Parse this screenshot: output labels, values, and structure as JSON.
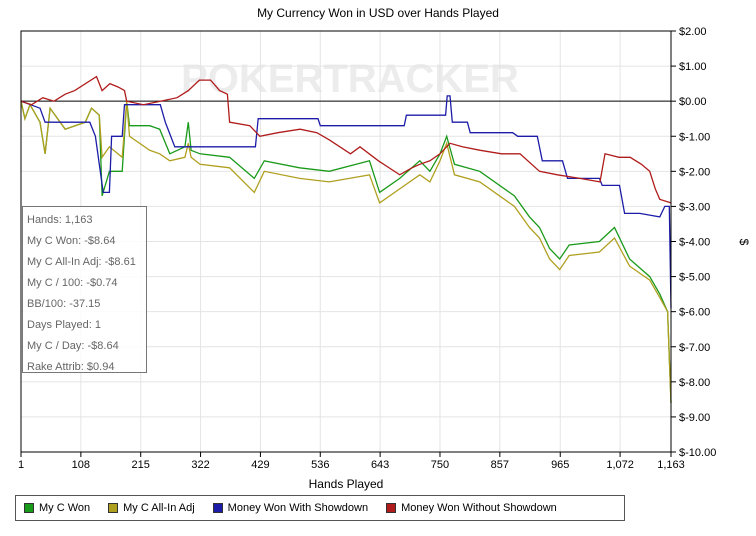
{
  "chart_data": {
    "type": "line",
    "title": "My Currency Won in USD over Hands Played",
    "xlabel": "Hands Played",
    "ylabel": "$",
    "watermark": "POKERTRACKER",
    "xlim": [
      1,
      1163
    ],
    "ylim": [
      -10,
      2
    ],
    "x_ticks": [
      "1",
      "108",
      "215",
      "322",
      "429",
      "536",
      "643",
      "750",
      "857",
      "965",
      "1,072",
      "1,163"
    ],
    "x_tick_values": [
      1,
      108,
      215,
      322,
      429,
      536,
      643,
      750,
      857,
      965,
      1072,
      1163
    ],
    "y_ticks": [
      "$2.00",
      "$1.00",
      "$0.00",
      "$-1.00",
      "$-2.00",
      "$-3.00",
      "$-4.00",
      "$-5.00",
      "$-6.00",
      "$-7.00",
      "$-8.00",
      "$-9.00",
      "$-10.00"
    ],
    "y_tick_values": [
      2,
      1,
      0,
      -1,
      -2,
      -3,
      -4,
      -5,
      -6,
      -7,
      -8,
      -9,
      -10
    ],
    "grid": true,
    "legend_position": "bottom",
    "series": [
      {
        "name": "My C Won",
        "color": "#1a9a1a",
        "points": [
          [
            1,
            0
          ],
          [
            8,
            -0.5
          ],
          [
            17,
            -0.1
          ],
          [
            35,
            -0.6
          ],
          [
            44,
            -1.5
          ],
          [
            53,
            -0.2
          ],
          [
            80,
            -0.8
          ],
          [
            116,
            -0.6
          ],
          [
            127,
            -0.2
          ],
          [
            141,
            -0.4
          ],
          [
            146,
            -2.7
          ],
          [
            159,
            -2.0
          ],
          [
            182,
            -2.0
          ],
          [
            190,
            0.0
          ],
          [
            195,
            -0.7
          ],
          [
            231,
            -0.7
          ],
          [
            249,
            -0.8
          ],
          [
            267,
            -1.5
          ],
          [
            294,
            -1.3
          ],
          [
            300,
            -0.6
          ],
          [
            305,
            -1.4
          ],
          [
            321,
            -1.5
          ],
          [
            374,
            -1.6
          ],
          [
            418,
            -2.2
          ],
          [
            436,
            -1.7
          ],
          [
            499,
            -1.9
          ],
          [
            552,
            -2.0
          ],
          [
            624,
            -1.7
          ],
          [
            642,
            -2.6
          ],
          [
            678,
            -2.2
          ],
          [
            714,
            -1.7
          ],
          [
            732,
            -2.0
          ],
          [
            750,
            -1.5
          ],
          [
            762,
            -1.0
          ],
          [
            776,
            -1.8
          ],
          [
            821,
            -2.0
          ],
          [
            883,
            -2.7
          ],
          [
            910,
            -3.3
          ],
          [
            928,
            -3.6
          ],
          [
            946,
            -4.2
          ],
          [
            964,
            -4.5
          ],
          [
            981,
            -4.1
          ],
          [
            1035,
            -4.0
          ],
          [
            1062,
            -3.6
          ],
          [
            1089,
            -4.5
          ],
          [
            1125,
            -5.0
          ],
          [
            1143,
            -5.5
          ],
          [
            1157,
            -6.0
          ],
          [
            1163,
            -8.6
          ]
        ]
      },
      {
        "name": "My C All-In Adj",
        "color": "#b0a020",
        "points": [
          [
            1,
            0
          ],
          [
            8,
            -0.5
          ],
          [
            17,
            -0.1
          ],
          [
            35,
            -0.6
          ],
          [
            44,
            -1.5
          ],
          [
            53,
            -0.2
          ],
          [
            80,
            -0.8
          ],
          [
            116,
            -0.6
          ],
          [
            127,
            -0.2
          ],
          [
            141,
            -0.4
          ],
          [
            146,
            -1.6
          ],
          [
            159,
            -1.3
          ],
          [
            182,
            -1.6
          ],
          [
            190,
            0.0
          ],
          [
            195,
            -1.0
          ],
          [
            231,
            -1.4
          ],
          [
            249,
            -1.5
          ],
          [
            267,
            -1.7
          ],
          [
            294,
            -1.6
          ],
          [
            300,
            -1.2
          ],
          [
            305,
            -1.6
          ],
          [
            321,
            -1.8
          ],
          [
            374,
            -1.9
          ],
          [
            418,
            -2.6
          ],
          [
            436,
            -2.0
          ],
          [
            499,
            -2.2
          ],
          [
            552,
            -2.3
          ],
          [
            624,
            -2.1
          ],
          [
            642,
            -2.9
          ],
          [
            678,
            -2.5
          ],
          [
            714,
            -2.1
          ],
          [
            732,
            -2.3
          ],
          [
            750,
            -1.7
          ],
          [
            762,
            -1.2
          ],
          [
            776,
            -2.1
          ],
          [
            821,
            -2.3
          ],
          [
            883,
            -3.0
          ],
          [
            910,
            -3.6
          ],
          [
            928,
            -3.9
          ],
          [
            946,
            -4.5
          ],
          [
            964,
            -4.8
          ],
          [
            981,
            -4.4
          ],
          [
            1035,
            -4.3
          ],
          [
            1062,
            -3.9
          ],
          [
            1089,
            -4.7
          ],
          [
            1125,
            -5.1
          ],
          [
            1143,
            -5.6
          ],
          [
            1157,
            -6.0
          ],
          [
            1163,
            -8.6
          ]
        ]
      },
      {
        "name": "Money Won With Showdown",
        "color": "#1c1ca8",
        "points": [
          [
            1,
            0
          ],
          [
            35,
            -0.2
          ],
          [
            44,
            -0.6
          ],
          [
            124,
            -0.6
          ],
          [
            134,
            -1.0
          ],
          [
            148,
            -2.6
          ],
          [
            159,
            -2.6
          ],
          [
            163,
            -1.0
          ],
          [
            182,
            -1.0
          ],
          [
            186,
            -0.1
          ],
          [
            250,
            -0.1
          ],
          [
            259,
            -0.6
          ],
          [
            276,
            -1.3
          ],
          [
            420,
            -1.3
          ],
          [
            425,
            -0.5
          ],
          [
            532,
            -0.5
          ],
          [
            536,
            -0.7
          ],
          [
            686,
            -0.7
          ],
          [
            690,
            -0.4
          ],
          [
            760,
            -0.4
          ],
          [
            763,
            0.15
          ],
          [
            768,
            0.15
          ],
          [
            772,
            -0.6
          ],
          [
            799,
            -0.6
          ],
          [
            804,
            -0.9
          ],
          [
            880,
            -0.9
          ],
          [
            889,
            -1.0
          ],
          [
            924,
            -1.0
          ],
          [
            933,
            -1.7
          ],
          [
            969,
            -1.7
          ],
          [
            978,
            -2.2
          ],
          [
            1035,
            -2.2
          ],
          [
            1040,
            -2.4
          ],
          [
            1071,
            -2.4
          ],
          [
            1080,
            -3.2
          ],
          [
            1107,
            -3.2
          ],
          [
            1143,
            -3.3
          ],
          [
            1152,
            -3.0
          ],
          [
            1160,
            -3.0
          ],
          [
            1163,
            -5.9
          ]
        ]
      },
      {
        "name": "Money Won Without Showdown",
        "color": "#b01c1c",
        "points": [
          [
            1,
            0
          ],
          [
            20,
            -0.1
          ],
          [
            40,
            0.1
          ],
          [
            60,
            0.0
          ],
          [
            80,
            0.2
          ],
          [
            97,
            0.3
          ],
          [
            136,
            0.7
          ],
          [
            146,
            0.3
          ],
          [
            160,
            0.5
          ],
          [
            175,
            0.4
          ],
          [
            186,
            0.3
          ],
          [
            190,
            0.0
          ],
          [
            220,
            -0.1
          ],
          [
            250,
            0.0
          ],
          [
            280,
            0.1
          ],
          [
            300,
            0.3
          ],
          [
            320,
            0.6
          ],
          [
            340,
            0.6
          ],
          [
            356,
            0.3
          ],
          [
            370,
            0.2
          ],
          [
            374,
            -0.6
          ],
          [
            410,
            -0.7
          ],
          [
            428,
            -1.0
          ],
          [
            460,
            -0.9
          ],
          [
            500,
            -0.8
          ],
          [
            530,
            -0.9
          ],
          [
            552,
            -1.1
          ],
          [
            590,
            -1.5
          ],
          [
            607,
            -1.3
          ],
          [
            640,
            -1.7
          ],
          [
            678,
            -2.1
          ],
          [
            700,
            -1.9
          ],
          [
            714,
            -1.8
          ],
          [
            732,
            -1.7
          ],
          [
            750,
            -1.5
          ],
          [
            768,
            -1.2
          ],
          [
            790,
            -1.3
          ],
          [
            822,
            -1.4
          ],
          [
            860,
            -1.5
          ],
          [
            893,
            -1.5
          ],
          [
            928,
            -2.0
          ],
          [
            960,
            -2.1
          ],
          [
            1000,
            -2.2
          ],
          [
            1036,
            -2.3
          ],
          [
            1045,
            -1.5
          ],
          [
            1070,
            -1.6
          ],
          [
            1090,
            -1.6
          ],
          [
            1110,
            -1.8
          ],
          [
            1125,
            -2.0
          ],
          [
            1135,
            -2.5
          ],
          [
            1143,
            -2.8
          ],
          [
            1163,
            -2.9
          ]
        ]
      }
    ]
  },
  "stats": [
    "Hands: 1,163",
    "My C Won: -$8.64",
    "My C All-In Adj: -$8.61",
    "My C / 100: -$0.74",
    "BB/100: -37.15",
    "Days Played: 1",
    "My C / Day: -$8.64",
    "Rake Attrib: $0.94"
  ]
}
